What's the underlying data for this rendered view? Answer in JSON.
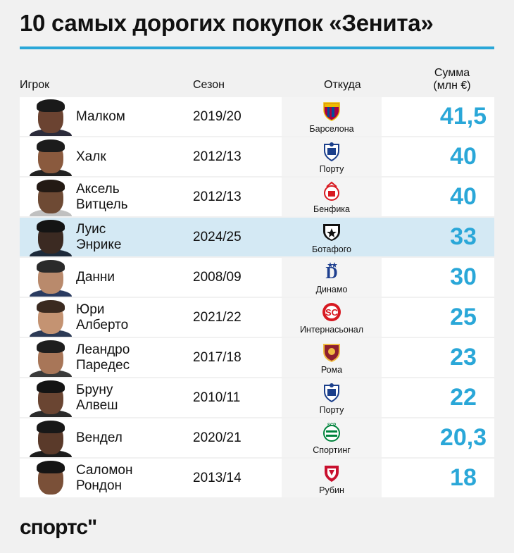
{
  "title": "10 самых дорогих покупок «Зенита»",
  "headers": {
    "player": "Игрок",
    "season": "Сезон",
    "from": "Откуда",
    "sum_line1": "Сумма",
    "sum_line2": "(млн €)"
  },
  "brand": "спортс\"",
  "colors": {
    "accent": "#2aa7d8",
    "highlight": "#d4e9f4"
  },
  "chart_data": {
    "type": "table",
    "title": "10 самых дорогих покупок «Зенита»",
    "columns": [
      "Игрок",
      "Сезон",
      "Откуда",
      "Сумма (млн €)"
    ],
    "rows": [
      {
        "player": "Малком",
        "season": "2019/20",
        "club": "Барселона",
        "value": "41,5",
        "amount": 41.5,
        "highlight": false
      },
      {
        "player": "Халк",
        "season": "2012/13",
        "club": "Порту",
        "value": "40",
        "amount": 40,
        "highlight": false
      },
      {
        "player": "Аксель\nВитцель",
        "season": "2012/13",
        "club": "Бенфика",
        "value": "40",
        "amount": 40,
        "highlight": false
      },
      {
        "player": "Луис\nЭнрике",
        "season": "2024/25",
        "club": "Ботафого",
        "value": "33",
        "amount": 33,
        "highlight": true
      },
      {
        "player": "Данни",
        "season": "2008/09",
        "club": "Динамо",
        "value": "30",
        "amount": 30,
        "highlight": false
      },
      {
        "player": "Юри\nАлберто",
        "season": "2021/22",
        "club": "Интернасьонал",
        "value": "25",
        "amount": 25,
        "highlight": false
      },
      {
        "player": "Леандро\nПаредес",
        "season": "2017/18",
        "club": "Рома",
        "value": "23",
        "amount": 23,
        "highlight": false
      },
      {
        "player": "Бруну\nАлвеш",
        "season": "2010/11",
        "club": "Порту",
        "value": "22",
        "amount": 22,
        "highlight": false
      },
      {
        "player": "Вендел",
        "season": "2020/21",
        "club": "Спортинг",
        "value": "20,3",
        "amount": 20.3,
        "highlight": false
      },
      {
        "player": "Саломон\nРондон",
        "season": "2013/14",
        "club": "Рубин",
        "value": "18",
        "amount": 18,
        "highlight": false
      }
    ]
  }
}
